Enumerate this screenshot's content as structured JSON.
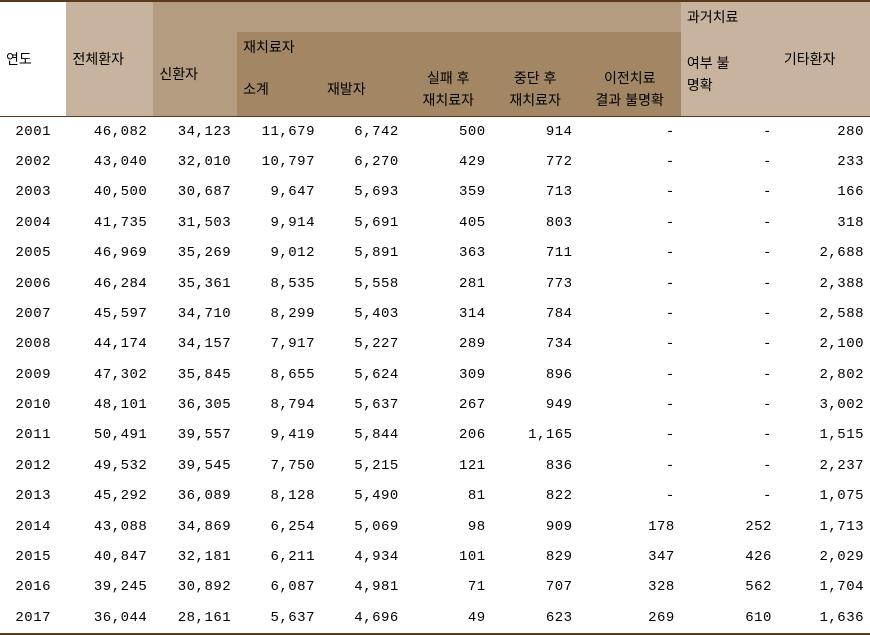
{
  "headers": {
    "year": "연도",
    "total": "전체환자",
    "new": "신환자",
    "retreat_group": "재치료자",
    "retreat_subtotal": "소계",
    "relapse": "재발자",
    "fail_l1": "실패 후",
    "fail_l2": "재치료자",
    "stop_l1": "중단 후",
    "stop_l2": "재치료자",
    "prev_l1": "이전치료",
    "prev_l2": "결과 불명확",
    "past_group_l1": "과거치료",
    "past_l1": "여부 불",
    "past_l2": "명확",
    "other": "기타환자"
  },
  "rows": [
    {
      "year": "2001",
      "total": "46,082",
      "new": "34,123",
      "sub": "11,679",
      "relapse": "6,742",
      "fail": "500",
      "stop": "914",
      "prev": "-",
      "past": "-",
      "other": "280"
    },
    {
      "year": "2002",
      "total": "43,040",
      "new": "32,010",
      "sub": "10,797",
      "relapse": "6,270",
      "fail": "429",
      "stop": "772",
      "prev": "-",
      "past": "-",
      "other": "233"
    },
    {
      "year": "2003",
      "total": "40,500",
      "new": "30,687",
      "sub": "9,647",
      "relapse": "5,693",
      "fail": "359",
      "stop": "713",
      "prev": "-",
      "past": "-",
      "other": "166"
    },
    {
      "year": "2004",
      "total": "41,735",
      "new": "31,503",
      "sub": "9,914",
      "relapse": "5,691",
      "fail": "405",
      "stop": "803",
      "prev": "-",
      "past": "-",
      "other": "318"
    },
    {
      "year": "2005",
      "total": "46,969",
      "new": "35,269",
      "sub": "9,012",
      "relapse": "5,891",
      "fail": "363",
      "stop": "711",
      "prev": "-",
      "past": "-",
      "other": "2,688"
    },
    {
      "year": "2006",
      "total": "46,284",
      "new": "35,361",
      "sub": "8,535",
      "relapse": "5,558",
      "fail": "281",
      "stop": "773",
      "prev": "-",
      "past": "-",
      "other": "2,388"
    },
    {
      "year": "2007",
      "total": "45,597",
      "new": "34,710",
      "sub": "8,299",
      "relapse": "5,403",
      "fail": "314",
      "stop": "784",
      "prev": "-",
      "past": "-",
      "other": "2,588"
    },
    {
      "year": "2008",
      "total": "44,174",
      "new": "34,157",
      "sub": "7,917",
      "relapse": "5,227",
      "fail": "289",
      "stop": "734",
      "prev": "-",
      "past": "-",
      "other": "2,100"
    },
    {
      "year": "2009",
      "total": "47,302",
      "new": "35,845",
      "sub": "8,655",
      "relapse": "5,624",
      "fail": "309",
      "stop": "896",
      "prev": "-",
      "past": "-",
      "other": "2,802"
    },
    {
      "year": "2010",
      "total": "48,101",
      "new": "36,305",
      "sub": "8,794",
      "relapse": "5,637",
      "fail": "267",
      "stop": "949",
      "prev": "-",
      "past": "-",
      "other": "3,002"
    },
    {
      "year": "2011",
      "total": "50,491",
      "new": "39,557",
      "sub": "9,419",
      "relapse": "5,844",
      "fail": "206",
      "stop": "1,165",
      "prev": "-",
      "past": "-",
      "other": "1,515"
    },
    {
      "year": "2012",
      "total": "49,532",
      "new": "39,545",
      "sub": "7,750",
      "relapse": "5,215",
      "fail": "121",
      "stop": "836",
      "prev": "-",
      "past": "-",
      "other": "2,237"
    },
    {
      "year": "2013",
      "total": "45,292",
      "new": "36,089",
      "sub": "8,128",
      "relapse": "5,490",
      "fail": "81",
      "stop": "822",
      "prev": "-",
      "past": "-",
      "other": "1,075"
    },
    {
      "year": "2014",
      "total": "43,088",
      "new": "34,869",
      "sub": "6,254",
      "relapse": "5,069",
      "fail": "98",
      "stop": "909",
      "prev": "178",
      "past": "252",
      "other": "1,713"
    },
    {
      "year": "2015",
      "total": "40,847",
      "new": "32,181",
      "sub": "6,211",
      "relapse": "4,934",
      "fail": "101",
      "stop": "829",
      "prev": "347",
      "past": "426",
      "other": "2,029"
    },
    {
      "year": "2016",
      "total": "39,245",
      "new": "30,892",
      "sub": "6,087",
      "relapse": "4,981",
      "fail": "71",
      "stop": "707",
      "prev": "328",
      "past": "562",
      "other": "1,704"
    },
    {
      "year": "2017",
      "total": "36,044",
      "new": "28,161",
      "sub": "5,637",
      "relapse": "4,696",
      "fail": "49",
      "stop": "623",
      "prev": "269",
      "past": "610",
      "other": "1,636"
    }
  ]
}
